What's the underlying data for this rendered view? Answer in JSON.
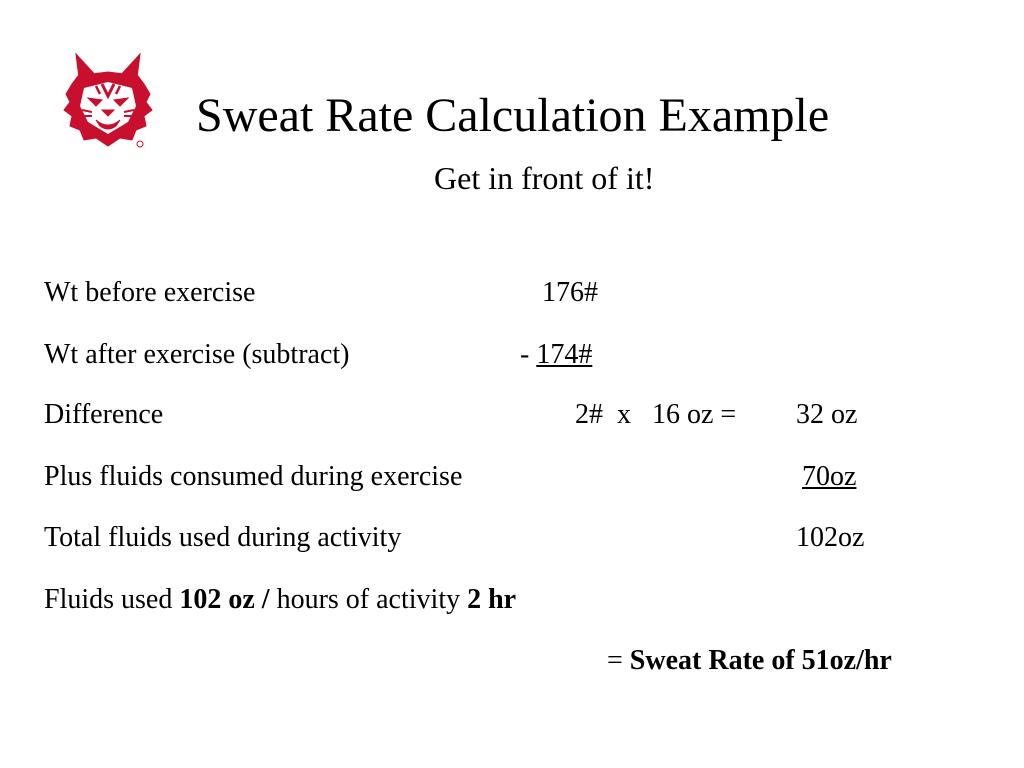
{
  "slide": {
    "title": "Sweat Rate Calculation Example",
    "subtitle": "Get in front of it!",
    "logo_color": "#c8102e"
  },
  "rows": {
    "wt_before": {
      "label": "Wt before exercise",
      "value": "176#"
    },
    "wt_after": {
      "label": "Wt after exercise  (subtract)",
      "prefix": "- ",
      "value": "174#"
    },
    "difference": {
      "label": "Difference",
      "calc": "2#  x   16 oz =",
      "result": "32 oz"
    },
    "plus_fluids": {
      "label": "Plus fluids consumed during exercise",
      "value": "70oz"
    },
    "total_fluids": {
      "label": "Total fluids used during activity",
      "value": "102oz"
    },
    "fluids_used": {
      "part1": "Fluids used ",
      "part2": "102 oz / ",
      "part3": "hours of activity ",
      "part4": "2 hr"
    },
    "sweat_rate": {
      "prefix": "= ",
      "value": "Sweat Rate of 51oz/hr"
    }
  }
}
